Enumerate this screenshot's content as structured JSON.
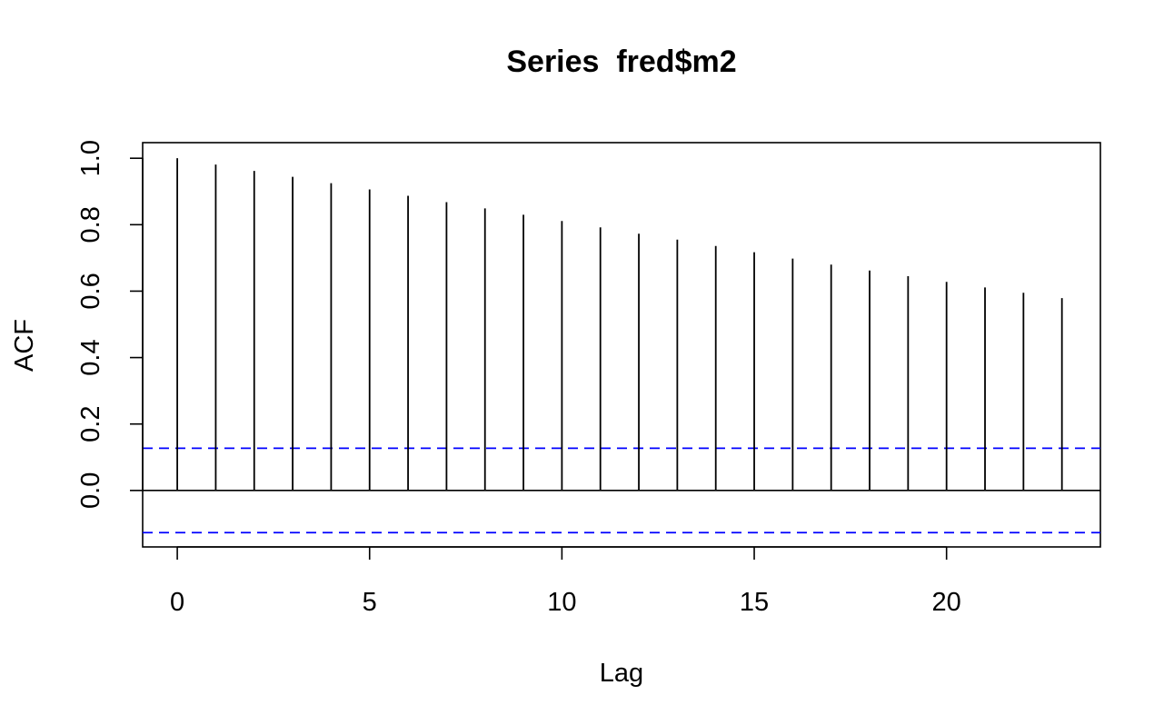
{
  "chart_data": {
    "type": "bar",
    "title": "Series  fred$m2",
    "xlabel": "Lag",
    "ylabel": "ACF",
    "xlim": [
      -0.9,
      24
    ],
    "ylim": [
      -0.17,
      1.047
    ],
    "x_ticks": [
      0,
      5,
      10,
      15,
      20
    ],
    "y_ticks": [
      0.0,
      0.2,
      0.4,
      0.6,
      0.8,
      1.0
    ],
    "x_tick_labels": [
      "0",
      "5",
      "10",
      "15",
      "20"
    ],
    "y_tick_labels": [
      "0.0",
      "0.2",
      "0.4",
      "0.6",
      "0.8",
      "1.0"
    ],
    "lags": [
      0,
      1,
      2,
      3,
      4,
      5,
      6,
      7,
      8,
      9,
      10,
      11,
      12,
      13,
      14,
      15,
      16,
      17,
      18,
      19,
      20,
      21,
      22,
      23
    ],
    "acf": [
      1.0,
      0.981,
      0.962,
      0.944,
      0.925,
      0.906,
      0.887,
      0.868,
      0.849,
      0.83,
      0.811,
      0.792,
      0.773,
      0.755,
      0.736,
      0.717,
      0.698,
      0.68,
      0.662,
      0.645,
      0.628,
      0.611,
      0.595,
      0.579
    ],
    "confidence_bound": 0.127,
    "bar_color": "#000000",
    "ci_color": "#0000FF",
    "grid": false,
    "legend": "none"
  }
}
